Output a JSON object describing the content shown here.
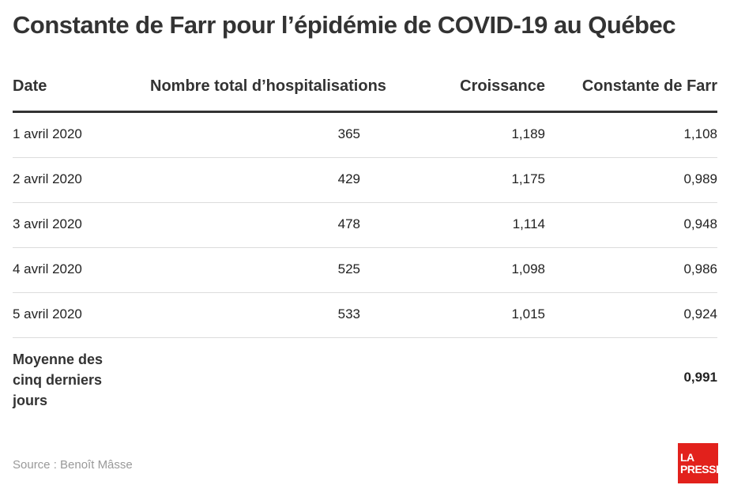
{
  "title": "Constante de Farr pour l’épidémie de COVID-19 au Québec",
  "chart_data": {
    "type": "table",
    "columns": [
      "Date",
      "Nombre total d’hospitalisations",
      "Croissance",
      "Constante de Farr"
    ],
    "rows": [
      {
        "date": "1 avril 2020",
        "hospitalisations": "365",
        "croissance": "1,189",
        "farr": "1,108"
      },
      {
        "date": "2 avril 2020",
        "hospitalisations": "429",
        "croissance": "1,175",
        "farr": "0,989"
      },
      {
        "date": "3 avril 2020",
        "hospitalisations": "478",
        "croissance": "1,114",
        "farr": "0,948"
      },
      {
        "date": "4 avril 2020",
        "hospitalisations": "525",
        "croissance": "1,098",
        "farr": "0,986"
      },
      {
        "date": "5 avril 2020",
        "hospitalisations": "533",
        "croissance": "1,015",
        "farr": "0,924"
      }
    ],
    "average": {
      "label": "Moyenne des cinq derniers jours",
      "farr": "0,991"
    }
  },
  "source": "Source : Benoît Mâsse",
  "logo": {
    "line1": "LA",
    "line2": "PRESSE"
  },
  "colors": {
    "logo_bg": "#e2211c",
    "header_rule": "#333333",
    "row_rule": "#dcdcdc"
  }
}
